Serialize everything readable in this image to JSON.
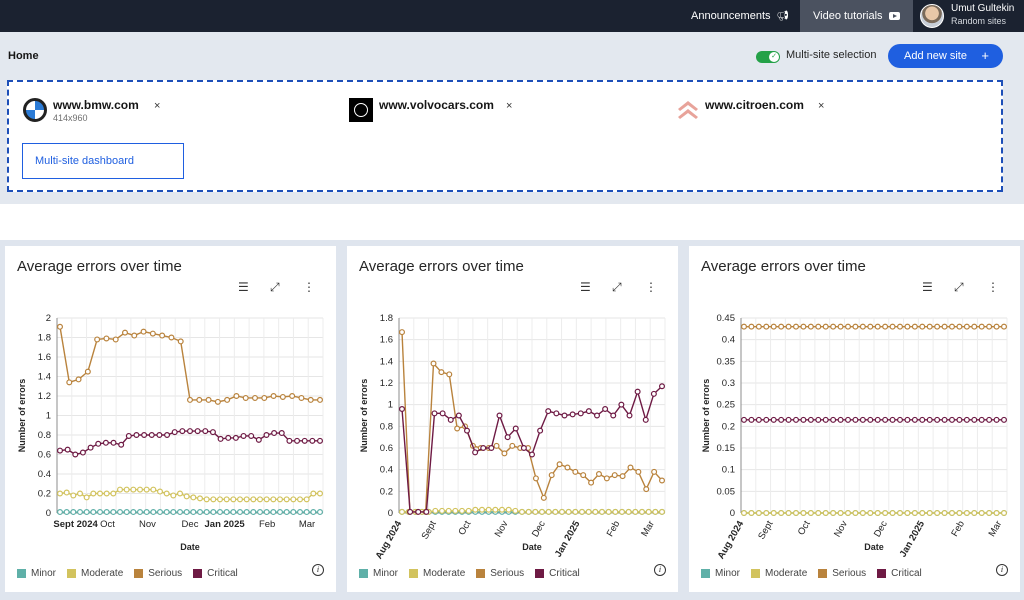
{
  "topbar": {
    "announcements": "Announcements",
    "announcements_icon": "megaphone-icon",
    "video_tutorials": "Video tutorials",
    "video_icon": "play-video-icon",
    "user_name": "Umut Gultekin",
    "user_sub": "Random sites"
  },
  "header": {
    "breadcrumb": "Home",
    "multisite_label": "Multi-site selection",
    "add_button": "Add new site",
    "add_icon": "+",
    "dashboard_button": "Multi-site dashboard"
  },
  "sites": [
    {
      "name": "www.bmw.com",
      "sub": "414x960",
      "icon": "bmw-logo",
      "remove": "×"
    },
    {
      "name": "www.volvocars.com",
      "sub": "",
      "icon": "volvo-logo",
      "remove": "×"
    },
    {
      "name": "www.citroen.com",
      "sub": "",
      "icon": "citroen-logo",
      "remove": "×"
    }
  ],
  "colors": {
    "minor": "#5fb0a8",
    "moderate": "#d2c35e",
    "serious": "#b9833d",
    "critical": "#6e1a44",
    "accent": "#1f5fe0"
  },
  "legend": [
    "Minor",
    "Moderate",
    "Serious",
    "Critical"
  ],
  "info_icon": "i",
  "chart_data": [
    {
      "type": "line",
      "title": "Average errors over time",
      "xlabel": "Date",
      "ylabel": "Number of errors",
      "ylim": [
        0,
        2
      ],
      "yticks": [
        "0",
        "0.2",
        "0.4",
        "0.6",
        "0.8",
        "1",
        "1.2",
        "1.4",
        "1.6",
        "1.8",
        "2"
      ],
      "xticks": [
        "Sept 2024",
        "Oct",
        "Nov",
        "Dec",
        "Jan 2025",
        "Feb",
        "Mar"
      ],
      "xtick_pos": [
        0.07,
        0.19,
        0.34,
        0.5,
        0.63,
        0.79,
        0.94
      ],
      "xtick_bold": [
        true,
        false,
        false,
        false,
        true,
        false,
        false
      ],
      "xtick_rotate": false,
      "grid": true,
      "legend_position": "bottom",
      "series": [
        {
          "name": "Minor",
          "values": [
            0.01,
            0.01,
            0.01,
            0.01,
            0.01,
            0.01,
            0.01,
            0.01,
            0.01,
            0.01,
            0.01,
            0.01,
            0.01,
            0.01,
            0.01,
            0.01,
            0.01,
            0.01,
            0.01,
            0.01,
            0.01,
            0.01,
            0.01,
            0.01,
            0.01,
            0.01,
            0.01,
            0.01,
            0.01,
            0.01,
            0.01,
            0.01,
            0.01,
            0.01,
            0.01,
            0.01,
            0.01,
            0.01,
            0.01,
            0.01
          ]
        },
        {
          "name": "Moderate",
          "values": [
            0.2,
            0.21,
            0.18,
            0.2,
            0.16,
            0.2,
            0.2,
            0.2,
            0.2,
            0.24,
            0.24,
            0.24,
            0.24,
            0.24,
            0.24,
            0.22,
            0.2,
            0.18,
            0.2,
            0.17,
            0.16,
            0.15,
            0.14,
            0.14,
            0.14,
            0.14,
            0.14,
            0.14,
            0.14,
            0.14,
            0.14,
            0.14,
            0.14,
            0.14,
            0.14,
            0.14,
            0.14,
            0.14,
            0.2,
            0.2
          ]
        },
        {
          "name": "Serious",
          "values": [
            1.91,
            1.34,
            1.37,
            1.45,
            1.78,
            1.79,
            1.78,
            1.85,
            1.82,
            1.86,
            1.84,
            1.82,
            1.8,
            1.76,
            1.16,
            1.16,
            1.16,
            1.14,
            1.16,
            1.2,
            1.18,
            1.18,
            1.18,
            1.2,
            1.19,
            1.2,
            1.18,
            1.16,
            1.16
          ]
        },
        {
          "name": "Critical",
          "values": [
            0.64,
            0.65,
            0.6,
            0.62,
            0.67,
            0.71,
            0.72,
            0.72,
            0.7,
            0.79,
            0.8,
            0.8,
            0.8,
            0.8,
            0.8,
            0.83,
            0.84,
            0.84,
            0.84,
            0.84,
            0.83,
            0.76,
            0.77,
            0.77,
            0.79,
            0.79,
            0.75,
            0.8,
            0.82,
            0.82,
            0.74,
            0.74,
            0.74,
            0.74,
            0.74
          ]
        }
      ]
    },
    {
      "type": "line",
      "title": "Average errors over time",
      "xlabel": "Date",
      "ylabel": "Number of errors",
      "ylim": [
        0,
        1.8
      ],
      "yticks": [
        "0",
        "0.2",
        "0.4",
        "0.6",
        "0.8",
        "1",
        "1.2",
        "1.4",
        "1.6",
        "1.8"
      ],
      "xticks": [
        "Aug 2024",
        "Sept",
        "Oct",
        "Nov",
        "Dec",
        "Jan 2025",
        "Feb",
        "Mar"
      ],
      "xtick_pos": [
        0.01,
        0.14,
        0.27,
        0.41,
        0.55,
        0.68,
        0.83,
        0.96
      ],
      "xtick_bold": [
        true,
        false,
        false,
        false,
        false,
        true,
        false,
        false
      ],
      "xtick_rotate": true,
      "grid": true,
      "legend_position": "bottom",
      "series": [
        {
          "name": "Minor",
          "values": [
            0.01,
            0.01,
            0.01,
            0.01,
            0.01,
            0.01,
            0.01,
            0.01,
            0.01,
            0.01,
            0.01,
            0.01,
            0.01,
            0.01,
            0.01,
            0.01,
            0.01,
            0.01,
            0.01,
            0.01,
            0.01,
            0.01,
            0.01,
            0.01,
            0.01,
            0.01,
            0.01,
            0.01,
            0.01,
            0.01,
            0.01,
            0.01,
            0.01,
            0.01,
            0.01,
            0.01,
            0.01,
            0.01,
            0.01,
            0.01
          ]
        },
        {
          "name": "Moderate",
          "values": [
            0.01,
            0.01,
            0.01,
            0.01,
            0.01,
            0.02,
            0.02,
            0.02,
            0.02,
            0.02,
            0.02,
            0.03,
            0.03,
            0.03,
            0.03,
            0.03,
            0.03,
            0.02,
            0.01,
            0.01,
            0.01,
            0.01,
            0.01,
            0.01,
            0.01,
            0.01,
            0.01,
            0.01,
            0.01,
            0.01,
            0.01,
            0.01,
            0.01,
            0.01,
            0.01,
            0.01,
            0.01,
            0.01,
            0.01,
            0.01
          ]
        },
        {
          "name": "Serious",
          "values": [
            1.67,
            0.01,
            0.01,
            0.01,
            1.38,
            1.3,
            1.28,
            0.78,
            0.8,
            0.62,
            0.6,
            0.6,
            0.62,
            0.55,
            0.62,
            0.6,
            0.6,
            0.32,
            0.14,
            0.35,
            0.45,
            0.42,
            0.38,
            0.35,
            0.28,
            0.36,
            0.32,
            0.35,
            0.34,
            0.42,
            0.38,
            0.22,
            0.38,
            0.3
          ]
        },
        {
          "name": "Critical",
          "values": [
            0.96,
            0.01,
            0.01,
            0.01,
            0.92,
            0.92,
            0.86,
            0.9,
            0.76,
            0.56,
            0.6,
            0.6,
            0.9,
            0.7,
            0.78,
            0.6,
            0.54,
            0.76,
            0.94,
            0.92,
            0.9,
            0.91,
            0.92,
            0.94,
            0.9,
            0.96,
            0.9,
            1.0,
            0.9,
            1.12,
            0.86,
            1.1,
            1.17
          ]
        }
      ]
    },
    {
      "type": "line",
      "title": "Average errors over time",
      "xlabel": "Date",
      "ylabel": "Number of errors",
      "ylim": [
        0,
        0.45
      ],
      "yticks": [
        "0",
        "0.05",
        "0.1",
        "0.15",
        "0.2",
        "0.25",
        "0.3",
        "0.35",
        "0.4",
        "0.45"
      ],
      "xticks": [
        "Aug 2024",
        "Sept",
        "Oct",
        "Nov",
        "Dec",
        "Jan 2025",
        "Feb",
        "Mar"
      ],
      "xtick_pos": [
        0.01,
        0.12,
        0.26,
        0.4,
        0.55,
        0.69,
        0.84,
        0.98
      ],
      "xtick_bold": [
        true,
        false,
        false,
        false,
        false,
        true,
        false,
        false
      ],
      "xtick_rotate": true,
      "grid": true,
      "legend_position": "bottom",
      "series": [
        {
          "name": "Minor",
          "values": [
            0,
            0,
            0,
            0,
            0,
            0,
            0,
            0,
            0,
            0,
            0,
            0,
            0,
            0,
            0,
            0,
            0,
            0,
            0,
            0,
            0,
            0,
            0,
            0,
            0,
            0,
            0,
            0,
            0,
            0,
            0,
            0,
            0,
            0,
            0,
            0
          ]
        },
        {
          "name": "Moderate",
          "values": [
            0,
            0,
            0,
            0,
            0,
            0,
            0,
            0,
            0,
            0,
            0,
            0,
            0,
            0,
            0,
            0,
            0,
            0,
            0,
            0,
            0,
            0,
            0,
            0,
            0,
            0,
            0,
            0,
            0,
            0,
            0,
            0,
            0,
            0,
            0,
            0
          ]
        },
        {
          "name": "Serious",
          "values": [
            0.43,
            0.43,
            0.43,
            0.43,
            0.43,
            0.43,
            0.43,
            0.43,
            0.43,
            0.43,
            0.43,
            0.43,
            0.43,
            0.43,
            0.43,
            0.43,
            0.43,
            0.43,
            0.43,
            0.43,
            0.43,
            0.43,
            0.43,
            0.43,
            0.43,
            0.43,
            0.43,
            0.43,
            0.43,
            0.43,
            0.43,
            0.43,
            0.43,
            0.43,
            0.43,
            0.43
          ]
        },
        {
          "name": "Critical",
          "values": [
            0.215,
            0.215,
            0.215,
            0.215,
            0.215,
            0.215,
            0.215,
            0.215,
            0.215,
            0.215,
            0.215,
            0.215,
            0.215,
            0.215,
            0.215,
            0.215,
            0.215,
            0.215,
            0.215,
            0.215,
            0.215,
            0.215,
            0.215,
            0.215,
            0.215,
            0.215,
            0.215,
            0.215,
            0.215,
            0.215,
            0.215,
            0.215,
            0.215,
            0.215,
            0.215,
            0.215
          ]
        }
      ]
    }
  ]
}
